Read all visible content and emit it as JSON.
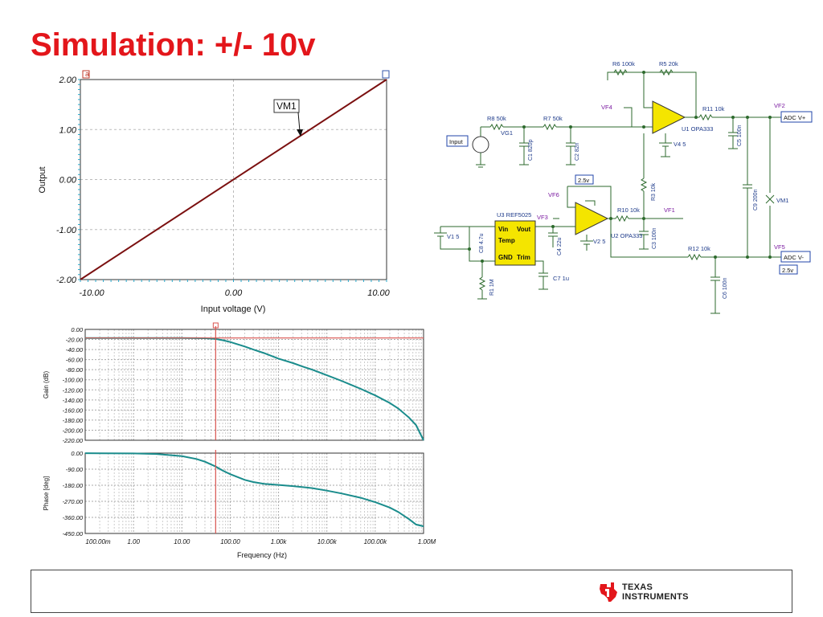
{
  "slide": {
    "title": "Simulation: +/- 10v",
    "logo_lines": [
      "TEXAS",
      "INSTRUMENTS"
    ],
    "logo_color": "#e3161b"
  },
  "chart_data": [
    {
      "type": "line",
      "xlabel": "Input voltage (V)",
      "ylabel": "Output",
      "xlim": [
        -10,
        10
      ],
      "ylim": [
        -2,
        2
      ],
      "x_tick_labels": [
        "-10.00",
        "0.00",
        "10.00"
      ],
      "y_tick_labels": [
        "2.00",
        "1.00",
        "0.00",
        "-1.00",
        "-2.00"
      ],
      "grid": true,
      "annotation": "VM1",
      "series": [
        {
          "name": "VM1",
          "x": [
            -10,
            10
          ],
          "y": [
            -2,
            2
          ],
          "color": "#7b1010"
        }
      ]
    },
    {
      "type": "line",
      "xscale": "log",
      "xlim": [
        0.1,
        1000000
      ],
      "ylim": [
        -220,
        0
      ],
      "ylabel": "Gain (dB)",
      "y_tick_labels": [
        "0.00",
        "-20.00",
        "-40.00",
        "-60.00",
        "-80.00",
        "-100.00",
        "-120.00",
        "-140.00",
        "-160.00",
        "-180.00",
        "-200.00",
        "-220.00"
      ],
      "cursor_x": 50,
      "cursor_y": -17,
      "grid": true,
      "series": [
        {
          "name": "",
          "color": "#1a8c8c",
          "x": [
            0.1,
            1,
            10,
            30,
            50,
            70,
            100,
            200,
            300,
            500,
            1000,
            2000,
            3000,
            5000,
            10000,
            20000,
            30000,
            50000,
            100000,
            200000,
            300000,
            500000,
            700000,
            1000000
          ],
          "y": [
            -17,
            -17,
            -17.1,
            -17.5,
            -19,
            -21.5,
            -25,
            -34,
            -40,
            -47,
            -58,
            -67,
            -73,
            -80,
            -91,
            -102,
            -109,
            -118,
            -131,
            -146,
            -157,
            -175,
            -190,
            -220
          ]
        }
      ]
    },
    {
      "type": "line",
      "xscale": "log",
      "xlim": [
        0.1,
        1000000
      ],
      "ylim": [
        -450,
        0
      ],
      "xlabel": "Frequency (Hz)",
      "ylabel": "Phase [deg]",
      "x_tick_labels": [
        "100.00m",
        "1.00",
        "10.00",
        "100.00",
        "1.00k",
        "10.00k",
        "100.00k",
        "1.00M"
      ],
      "y_tick_labels": [
        "0.00",
        "-90.00",
        "-180.00",
        "-270.00",
        "-360.00",
        "-450.00"
      ],
      "cursor_x": 50,
      "grid": true,
      "series": [
        {
          "name": "",
          "color": "#1a8c8c",
          "x": [
            0.1,
            1,
            3,
            10,
            20,
            30,
            50,
            70,
            100,
            200,
            300,
            500,
            1000,
            2000,
            5000,
            10000,
            20000,
            50000,
            100000,
            200000,
            300000,
            500000,
            700000,
            1000000
          ],
          "y": [
            -0.5,
            -2,
            -5,
            -17,
            -33,
            -48,
            -75,
            -98,
            -118,
            -150,
            -162,
            -172,
            -178,
            -185,
            -196,
            -210,
            -226,
            -250,
            -275,
            -305,
            -330,
            -370,
            -400,
            -410
          ]
        }
      ]
    },
    {
      "type": "diagram",
      "labels": {
        "r6": "R6 100k",
        "r5": "R5 20k",
        "vf4": "VF4",
        "r11": "R11 10k",
        "vf2": "VF2",
        "adcp": "ADC V+",
        "r8": "R8 50k",
        "r7": "R7 50k",
        "u1": "U1 OPA333",
        "vg1": "VG1",
        "input": "Input",
        "c1": "C1 820p",
        "c2": "C2 82n",
        "v4": "V4 5",
        "c5": "C5 100n",
        "r3": "R3 10k",
        "vm1": "VM1",
        "c9": "C9 200n",
        "ref25": "2.5v",
        "vf6": "VF6",
        "u3": "U3 REF5025",
        "r10": "R10 10k",
        "vf1": "VF1",
        "vf3": "VF3",
        "v1": "V1 5",
        "c8": "C8 4.7u",
        "c4": "C4 22u",
        "v2": "V2 5",
        "u2": "U2 OPA333",
        "c3": "C3 100n",
        "r12": "R12 10k",
        "vf5": "VF5",
        "adcm": "ADC V-",
        "adcm_v": "2.5v",
        "r1": "R1 1M",
        "c7": "C7 1u",
        "c6": "C6 100n",
        "pin_vin": "Vin",
        "pin_vout": "Vout",
        "pin_temp": "Temp",
        "pin_gnd": "GND",
        "pin_trim": "Trim"
      }
    }
  ]
}
